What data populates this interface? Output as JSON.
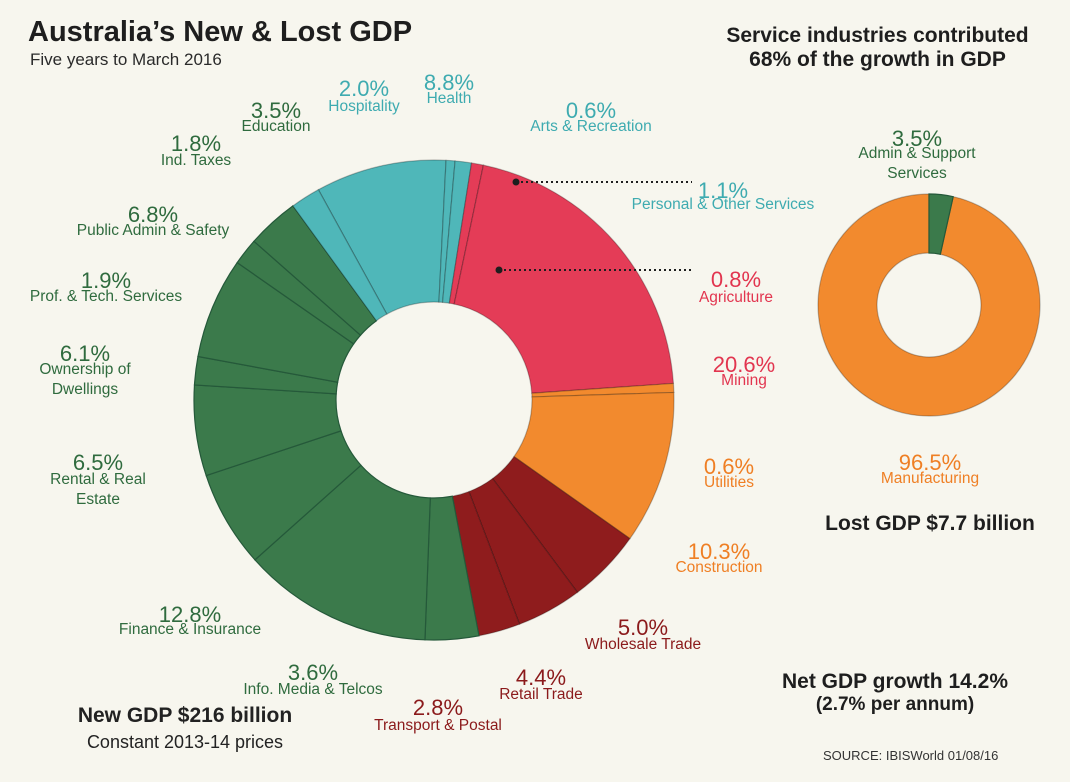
{
  "title": "Australia’s New & Lost GDP",
  "subtitle": "Five years to March 2016",
  "service_note": {
    "line1": "Service industries contributed",
    "line2": "68% of the growth in GDP"
  },
  "new_gdp": {
    "line1": "New GDP $216 billion",
    "line2": "Constant 2013-14 prices"
  },
  "lost_gdp": "Lost GDP $7.7 billion",
  "net_growth": {
    "line1": "Net GDP growth 14.2%",
    "line2": "(2.7% per annum)"
  },
  "source": "SOURCE: IBISWorld 01/08/16",
  "colors": {
    "green": "#3b7a4b",
    "teal": "#4fb7b9",
    "pink": "#e43c57",
    "orange": "#f28a2e",
    "darkred": "#8f1c1d",
    "divider": "#25593a"
  },
  "chart_data": [
    {
      "type": "pie",
      "title": "New GDP $216 billion",
      "categories": [
        "Health",
        "Arts & Recreation",
        "Personal & Other Services",
        "Agriculture",
        "Mining",
        "Utilities",
        "Construction",
        "Wholesale Trade",
        "Retail Trade",
        "Transport & Postal",
        "Info. Media & Telcos",
        "Finance & Insurance",
        "Rental & Real Estate",
        "Ownership of Dwellings",
        "Prof. & Tech. Services",
        "Public Admin & Safety",
        "Ind. Taxes",
        "Education",
        "Hospitality"
      ],
      "labels": [
        "Health",
        "Arts & Recreation",
        "Personal & Other Services",
        "Agriculture",
        "Mining",
        "Utilities",
        "Construction",
        "Wholesale Trade",
        "Retail Trade",
        "Transport & Postal",
        "Info. Media & Telcos",
        "Finance & Insurance",
        "Rental & Real\nEstate",
        "Ownership of\nDwellings",
        "Prof. & Tech. Services",
        "Public Admin & Safety",
        "Ind. Taxes",
        "Education",
        "Hospitality"
      ],
      "values": [
        8.8,
        0.6,
        1.1,
        0.8,
        20.6,
        0.6,
        10.3,
        5.0,
        4.4,
        2.8,
        3.6,
        12.8,
        6.5,
        6.1,
        1.9,
        6.8,
        1.8,
        3.5,
        2.0
      ],
      "value_labels": [
        "8.8%",
        "0.6%",
        "1.1%",
        "0.8%",
        "20.6%",
        "0.6%",
        "10.3%",
        "5.0%",
        "4.4%",
        "2.8%",
        "3.6%",
        "12.8%",
        "6.5%",
        "6.1%",
        "1.9%",
        "6.8%",
        "1.8%",
        "3.5%",
        "2.0%"
      ],
      "color_keys": [
        "teal",
        "teal",
        "teal",
        "pink",
        "pink",
        "orange",
        "orange",
        "darkred",
        "darkred",
        "darkred",
        "green",
        "green",
        "green",
        "green",
        "green",
        "green",
        "green",
        "green",
        "teal"
      ],
      "unit": "%"
    },
    {
      "type": "pie",
      "title": "Lost GDP $7.7 billion",
      "categories": [
        "Manufacturing",
        "Admin & Support Services"
      ],
      "labels": [
        "Manufacturing",
        "Admin & Support\nServices"
      ],
      "values": [
        96.5,
        3.5
      ],
      "value_labels": [
        "96.5%",
        "3.5%"
      ],
      "color_keys": [
        "orange",
        "green"
      ],
      "unit": "%"
    }
  ]
}
